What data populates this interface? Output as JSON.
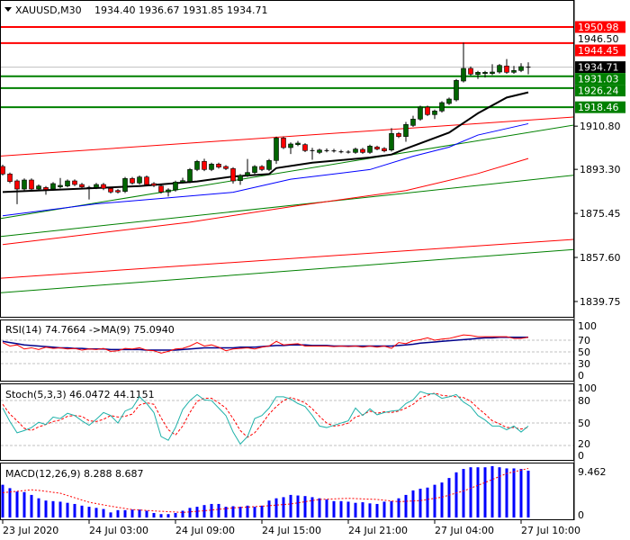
{
  "header": {
    "menu_icon": "triangle-down-icon",
    "symbol_tf": "XAUUSD,M30",
    "ohlc": "1934.40 1936.67 1931.85 1934.71"
  },
  "colors": {
    "bull": "#006400",
    "bear": "#ff0000",
    "resistance": "#ff0000",
    "support": "#008000",
    "ma_fast": "#000000",
    "ma_mid": "#0000ff",
    "ma_slow": "#ff0000",
    "rsi": "#ff0000",
    "rsi_ma": "#00008b",
    "stoch_main": "#20b2aa",
    "stoch_signal": "#ff0000",
    "macd_hist": "#0000ff",
    "macd_signal": "#ff0000"
  },
  "chart_data": {
    "type": "candlestick",
    "title": "XAUUSD,M30",
    "ylim": [
      1839.75,
      1950.98
    ],
    "price_ticks": [
      "1910.80",
      "1893.30",
      "1875.45",
      "1857.60",
      "1839.75"
    ],
    "price_tick_values": [
      1910.8,
      1893.3,
      1875.45,
      1857.6,
      1839.75
    ],
    "time_labels": [
      {
        "bar": 0,
        "label": "23 Jul 2020"
      },
      {
        "bar": 12,
        "label": "24 Jul 03:00"
      },
      {
        "bar": 24,
        "label": "24 Jul 09:00"
      },
      {
        "bar": 36,
        "label": "24 Jul 15:00"
      },
      {
        "bar": 48,
        "label": "24 Jul 21:00"
      },
      {
        "bar": 60,
        "label": "27 Jul 04:00"
      },
      {
        "bar": 72,
        "label": "27 Jul 10:00"
      }
    ],
    "levels": [
      {
        "value": 1950.98,
        "label": "1950.98",
        "kind": "resistance"
      },
      {
        "value": 1946.5,
        "label": "1946.50",
        "kind": "hidden"
      },
      {
        "value": 1944.45,
        "label": "1944.45",
        "kind": "resistance"
      },
      {
        "value": 1934.71,
        "label": "1934.71",
        "kind": "bid"
      },
      {
        "value": 1931.03,
        "label": "1931.03",
        "kind": "support"
      },
      {
        "value": 1926.24,
        "label": "1926.24",
        "kind": "support"
      },
      {
        "value": 1918.46,
        "label": "1918.46",
        "kind": "support"
      }
    ],
    "candles": [
      [
        1894.45,
        1895.2,
        1890.8,
        1891.41
      ],
      [
        1891.41,
        1892.0,
        1887.7,
        1888.37
      ],
      [
        1888.61,
        1889.2,
        1879.2,
        1885.33
      ],
      [
        1885.33,
        1889.6,
        1884.7,
        1888.98
      ],
      [
        1888.98,
        1889.6,
        1884.6,
        1885.33
      ],
      [
        1885.33,
        1887.2,
        1884.7,
        1886.55
      ],
      [
        1885.94,
        1886.5,
        1883.0,
        1885.09
      ],
      [
        1885.33,
        1888.1,
        1884.7,
        1887.52
      ],
      [
        1886.18,
        1889.8,
        1885.6,
        1886.79
      ],
      [
        1886.55,
        1889.2,
        1886.0,
        1888.61
      ],
      [
        1888.61,
        1889.2,
        1886.5,
        1887.15
      ],
      [
        1887.15,
        1887.8,
        1885.5,
        1886.18
      ],
      [
        1885.94,
        1886.6,
        1881.1,
        1885.94
      ],
      [
        1885.94,
        1887.8,
        1885.3,
        1887.15
      ],
      [
        1887.15,
        1887.8,
        1884.9,
        1885.57
      ],
      [
        1885.57,
        1886.2,
        1883.5,
        1884.12
      ],
      [
        1884.72,
        1885.3,
        1883.5,
        1884.12
      ],
      [
        1884.36,
        1890.2,
        1883.7,
        1889.58
      ],
      [
        1889.58,
        1890.2,
        1887.1,
        1887.76
      ],
      [
        1887.76,
        1890.8,
        1887.1,
        1890.19
      ],
      [
        1890.19,
        1890.8,
        1886.5,
        1887.15
      ],
      [
        1887.52,
        1888.1,
        1886.1,
        1886.79
      ],
      [
        1886.55,
        1887.2,
        1883.5,
        1884.12
      ],
      [
        1884.12,
        1885.6,
        1882.3,
        1884.97
      ],
      [
        1884.97,
        1888.7,
        1884.3,
        1888.13
      ],
      [
        1888.13,
        1889.9,
        1887.5,
        1888.73
      ],
      [
        1888.37,
        1893.8,
        1887.7,
        1893.23
      ],
      [
        1893.23,
        1897.1,
        1892.6,
        1896.51
      ],
      [
        1896.51,
        1897.6,
        1892.6,
        1893.23
      ],
      [
        1893.23,
        1896.0,
        1892.6,
        1895.42
      ],
      [
        1895.42,
        1896.0,
        1893.6,
        1894.2
      ],
      [
        1894.45,
        1895.0,
        1893.0,
        1893.6
      ],
      [
        1893.6,
        1894.2,
        1887.5,
        1888.61
      ],
      [
        1888.73,
        1891.4,
        1887.0,
        1890.8
      ],
      [
        1890.8,
        1897.5,
        1890.2,
        1892.02
      ],
      [
        1892.02,
        1895.0,
        1891.4,
        1894.45
      ],
      [
        1894.45,
        1895.0,
        1892.6,
        1893.23
      ],
      [
        1893.23,
        1897.5,
        1892.6,
        1896.88
      ],
      [
        1896.88,
        1906.6,
        1895.5,
        1905.99
      ],
      [
        1905.99,
        1906.6,
        1901.5,
        1902.11
      ],
      [
        1902.11,
        1904.2,
        1899.5,
        1903.57
      ],
      [
        1903.32,
        1904.8,
        1902.7,
        1903.93
      ],
      [
        1903.32,
        1903.9,
        1900.3,
        1900.89
      ],
      [
        1900.89,
        1902.0,
        1897.2,
        1900.89
      ],
      [
        1900.16,
        1901.7,
        1899.5,
        1901.13
      ],
      [
        1900.89,
        1901.8,
        1900.2,
        1900.89
      ],
      [
        1900.77,
        1901.6,
        1900.1,
        1900.77
      ],
      [
        1900.4,
        1901.2,
        1899.8,
        1900.4
      ],
      [
        1900.28,
        1901.0,
        1899.7,
        1900.28
      ],
      [
        1900.16,
        1902.1,
        1899.6,
        1901.5
      ],
      [
        1901.38,
        1902.0,
        1899.6,
        1900.16
      ],
      [
        1900.16,
        1903.3,
        1899.6,
        1902.71
      ],
      [
        1902.35,
        1902.9,
        1901.0,
        1901.5
      ],
      [
        1901.74,
        1902.3,
        1900.2,
        1900.77
      ],
      [
        1901.13,
        1910.0,
        1900.5,
        1907.82
      ],
      [
        1907.82,
        1908.4,
        1906.0,
        1906.6
      ],
      [
        1906.6,
        1912.5,
        1904.5,
        1911.47
      ],
      [
        1911.1,
        1915.0,
        1910.5,
        1913.66
      ],
      [
        1913.66,
        1919.1,
        1913.0,
        1918.52
      ],
      [
        1918.52,
        1919.1,
        1914.9,
        1915.48
      ],
      [
        1915.48,
        1917.5,
        1913.7,
        1916.94
      ],
      [
        1916.94,
        1920.9,
        1916.3,
        1920.34
      ],
      [
        1919.98,
        1922.4,
        1919.4,
        1921.8
      ],
      [
        1921.44,
        1929.9,
        1920.8,
        1929.34
      ],
      [
        1929.09,
        1944.65,
        1928.5,
        1934.2
      ],
      [
        1934.2,
        1935.0,
        1931.3,
        1931.89
      ],
      [
        1931.77,
        1933.2,
        1929.9,
        1932.62
      ],
      [
        1932.13,
        1933.2,
        1930.5,
        1932.62
      ],
      [
        1932.13,
        1935.9,
        1931.5,
        1932.74
      ],
      [
        1932.74,
        1936.0,
        1932.1,
        1935.42
      ],
      [
        1935.17,
        1938.0,
        1932.0,
        1932.62
      ],
      [
        1932.62,
        1935.2,
        1932.0,
        1933.35
      ],
      [
        1933.35,
        1936.3,
        1932.7,
        1934.93
      ],
      [
        1934.4,
        1936.67,
        1931.85,
        1934.71
      ]
    ],
    "moving_averages": [
      {
        "name": "ma-fast",
        "color_key": "ma_fast",
        "points": [
          [
            0,
            1884.1
          ],
          [
            19,
            1886.5
          ],
          [
            27,
            1888.4
          ],
          [
            32,
            1890.4
          ],
          [
            37,
            1891.4
          ],
          [
            38,
            1893.8
          ],
          [
            43,
            1896.0
          ],
          [
            51,
            1898.1
          ],
          [
            54,
            1899.3
          ],
          [
            56,
            1901.7
          ],
          [
            62,
            1908.2
          ],
          [
            66,
            1916.0
          ],
          [
            70,
            1922.4
          ],
          [
            73,
            1924.5
          ]
        ]
      },
      {
        "name": "ma-mid",
        "color_key": "ma_mid",
        "points": [
          [
            0,
            1874.5
          ],
          [
            13,
            1879.3
          ],
          [
            22,
            1881.5
          ],
          [
            32,
            1884.0
          ],
          [
            40,
            1889.3
          ],
          [
            51,
            1893.2
          ],
          [
            57,
            1898.6
          ],
          [
            62,
            1902.3
          ],
          [
            66,
            1907.2
          ],
          [
            73,
            1911.8
          ]
        ]
      },
      {
        "name": "ma-slow",
        "color_key": "ma_slow",
        "points": [
          [
            0,
            1862.8
          ],
          [
            26,
            1871.9
          ],
          [
            41,
            1878.6
          ],
          [
            56,
            1884.7
          ],
          [
            66,
            1891.6
          ],
          [
            73,
            1897.7
          ]
        ]
      }
    ],
    "trendlines": [
      {
        "name": "channel-red-upper",
        "kind": "resistance",
        "start": 1898.7,
        "end": 1914.5
      },
      {
        "name": "channel-green-upper",
        "kind": "support",
        "start": 1873.4,
        "end": 1911.2
      },
      {
        "name": "channel-green-middle",
        "kind": "support",
        "start": 1866.1,
        "end": 1890.9
      },
      {
        "name": "channel-red-lower",
        "kind": "resistance",
        "start": 1849.2,
        "end": 1864.9
      },
      {
        "name": "channel-green-lower",
        "kind": "support",
        "start": 1843.3,
        "end": 1860.8
      }
    ],
    "rsi": {
      "label": "RSI(14) 74.7664  ->MA(9) 75.0940",
      "ticks": [
        "100",
        "70",
        "50",
        "30",
        "0"
      ],
      "tick_values": [
        100,
        70,
        50,
        30,
        0
      ],
      "levels": [
        70,
        50,
        30
      ],
      "values": [
        66,
        60,
        62,
        55,
        57,
        54,
        58,
        56,
        57,
        55,
        56,
        53,
        55,
        54,
        56,
        51,
        52,
        56,
        55,
        57,
        53,
        52,
        48,
        51,
        55,
        56,
        60,
        66,
        60,
        62,
        58,
        52,
        55,
        56,
        57,
        55,
        58,
        60,
        68,
        62,
        63,
        64,
        60,
        60,
        60,
        60,
        59,
        60,
        59,
        60,
        58,
        60,
        58,
        60,
        56,
        66,
        64,
        69,
        71,
        74,
        70,
        72,
        73,
        76,
        79,
        78,
        76,
        76,
        76,
        76,
        76,
        73,
        73,
        75
      ],
      "ma": [
        68,
        66,
        64,
        62,
        61,
        60,
        59,
        58,
        57,
        57,
        56,
        56,
        55,
        55,
        55,
        54,
        54,
        54,
        54,
        54,
        53,
        53,
        53,
        53,
        53,
        54,
        55,
        56,
        57,
        57,
        57,
        57,
        57,
        58,
        58,
        58,
        59,
        60,
        61,
        61,
        62,
        62,
        62,
        61,
        61,
        61,
        60,
        60,
        60,
        60,
        60,
        60,
        60,
        60,
        60,
        61,
        62,
        63,
        65,
        66,
        67,
        68,
        69,
        70,
        71,
        72,
        73,
        74,
        74,
        75,
        75,
        75,
        75,
        75
      ]
    },
    "stochastic": {
      "label": "Stoch(5,3,3) 46.0472 44.1151",
      "ticks": [
        "100",
        "80",
        "50",
        "20",
        "0"
      ],
      "tick_values": [
        100,
        80,
        50,
        20,
        0
      ],
      "levels": [
        80,
        50,
        20
      ],
      "main": [
        70,
        52,
        37,
        40,
        44,
        51,
        48,
        58,
        56,
        63,
        60,
        53,
        47,
        55,
        64,
        60,
        50,
        66,
        70,
        85,
        76,
        64,
        32,
        27,
        44,
        68,
        80,
        88,
        81,
        80,
        70,
        60,
        38,
        22,
        32,
        56,
        60,
        70,
        85,
        85,
        82,
        76,
        72,
        60,
        46,
        44,
        47,
        50,
        53,
        70,
        60,
        69,
        61,
        64,
        66,
        67,
        76,
        81,
        92,
        89,
        89,
        83,
        85,
        88,
        78,
        72,
        60,
        54,
        46,
        46,
        41,
        46,
        38,
        46
      ],
      "signal": [
        75,
        62,
        53,
        43,
        40,
        45,
        48,
        52,
        54,
        59,
        60,
        59,
        53,
        52,
        55,
        60,
        58,
        59,
        62,
        74,
        77,
        75,
        57,
        41,
        34,
        46,
        64,
        79,
        83,
        83,
        77,
        70,
        56,
        40,
        31,
        37,
        49,
        62,
        72,
        80,
        84,
        81,
        77,
        69,
        59,
        50,
        46,
        47,
        50,
        58,
        61,
        66,
        63,
        65,
        64,
        66,
        70,
        75,
        83,
        87,
        90,
        87,
        86,
        85,
        84,
        79,
        70,
        62,
        53,
        49,
        44,
        44,
        42,
        44
      ]
    },
    "macd": {
      "label": "MACD(12,26,9) 8.288 8.687",
      "ticks": [
        "9.462",
        "0"
      ],
      "histogram": [
        5.8,
        5.2,
        4.6,
        4.5,
        4.0,
        3.4,
        3.0,
        2.9,
        2.8,
        2.6,
        2.4,
        2.1,
        1.9,
        1.7,
        1.5,
        0.9,
        1.3,
        1.3,
        1.4,
        1.4,
        1.2,
        0.8,
        0.6,
        0.6,
        0.8,
        1.2,
        1.7,
        1.9,
        2.2,
        2.4,
        2.4,
        1.9,
        2.0,
        1.9,
        2.1,
        1.9,
        2.1,
        3.0,
        3.4,
        3.6,
        4.0,
        3.9,
        3.8,
        3.6,
        3.4,
        3.2,
        2.9,
        2.9,
        2.8,
        2.6,
        2.7,
        2.5,
        2.4,
        2.8,
        2.9,
        3.4,
        4.0,
        4.8,
        5.1,
        5.3,
        5.8,
        6.2,
        7.0,
        8.0,
        8.6,
        8.9,
        8.9,
        8.9,
        9.1,
        8.9,
        8.7,
        8.7,
        8.6,
        8.3
      ],
      "signal_points": [
        [
          0,
          4.4
        ],
        [
          4,
          4.9
        ],
        [
          5,
          4.8
        ],
        [
          8,
          4.3
        ],
        [
          10,
          3.5
        ],
        [
          12,
          2.7
        ],
        [
          15,
          2.0
        ],
        [
          18,
          1.4
        ],
        [
          22,
          1.1
        ],
        [
          25,
          0.9
        ],
        [
          28,
          1.2
        ],
        [
          32,
          1.7
        ],
        [
          36,
          2.0
        ],
        [
          40,
          2.4
        ],
        [
          44,
          3.2
        ],
        [
          48,
          3.4
        ],
        [
          52,
          3.2
        ],
        [
          55,
          2.8
        ],
        [
          58,
          3.0
        ],
        [
          61,
          3.6
        ],
        [
          64,
          4.7
        ],
        [
          67,
          6.2
        ],
        [
          70,
          7.8
        ],
        [
          73,
          8.7
        ]
      ]
    }
  }
}
